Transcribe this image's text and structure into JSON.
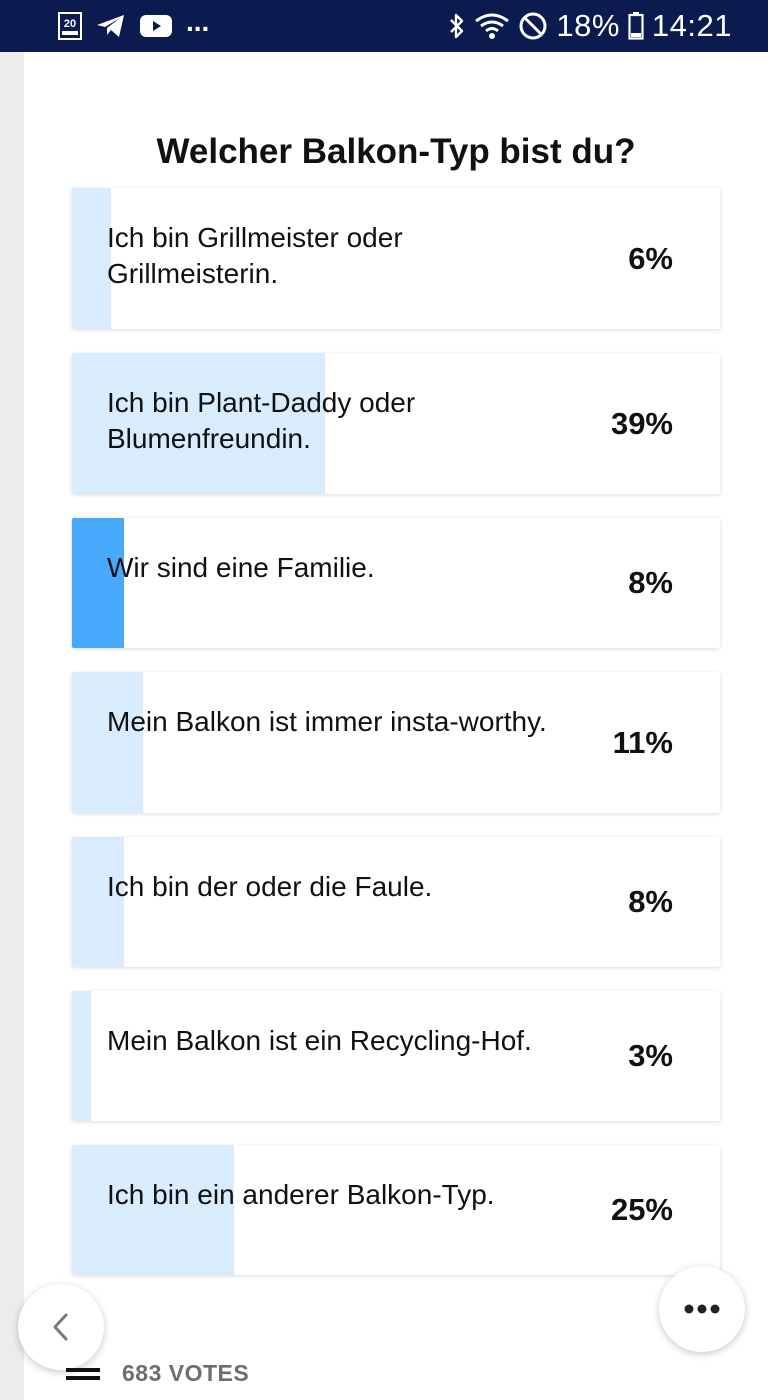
{
  "status_bar": {
    "battery": "18%",
    "time": "14:21",
    "more": "...",
    "icons": [
      "app-20min-icon",
      "telegram-icon",
      "youtube-icon",
      "bluetooth-icon",
      "wifi-icon",
      "do-not-disturb-icon",
      "battery-icon"
    ]
  },
  "poll": {
    "title": "Welcher Balkon-Typ bist du?",
    "selected_index": 2,
    "options": [
      {
        "label": "Ich bin Grillmeister oder Grillmeisterin.",
        "percent": "6%",
        "fill": 0.06
      },
      {
        "label": "Ich bin Plant-Daddy oder Blumenfreundin.",
        "percent": "39%",
        "fill": 0.39
      },
      {
        "label": "Wir sind eine Familie.",
        "percent": "8%",
        "fill": 0.08
      },
      {
        "label": "Mein Balkon ist immer insta-worthy.",
        "percent": "11%",
        "fill": 0.11
      },
      {
        "label": "Ich bin der oder die Faule.",
        "percent": "8%",
        "fill": 0.08
      },
      {
        "label": "Mein Balkon ist ein Recycling-Hof.",
        "percent": "3%",
        "fill": 0.03
      },
      {
        "label": "Ich bin ein anderer Balkon-Typ.",
        "percent": "25%",
        "fill": 0.25
      }
    ]
  },
  "footer": {
    "votes": "683 VOTES"
  },
  "colors": {
    "status_bar": "#0b1a4f",
    "fill": "#d8ecfd",
    "fill_selected": "#47a9fa"
  }
}
